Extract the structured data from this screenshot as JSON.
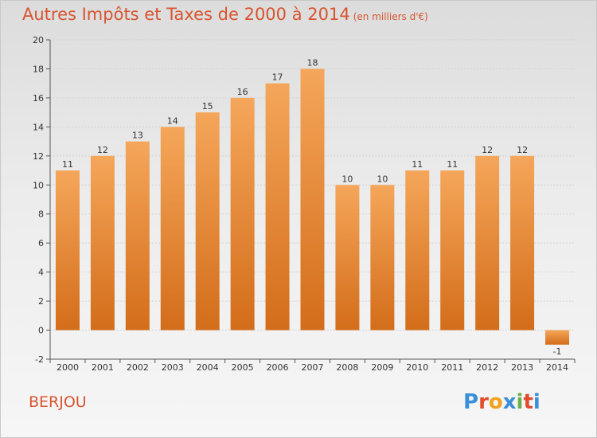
{
  "header": {
    "title": "Autres Impôts et Taxes de 2000 à 2014",
    "subtitle": "(en milliers d'€)"
  },
  "footer": {
    "commune": "BERJOU",
    "logo_letters": [
      "P",
      "r",
      "o",
      "x",
      "i",
      "t",
      "i"
    ]
  },
  "colors": {
    "bar_top": "#f5a65a",
    "bar_bottom": "#d36d1a",
    "title": "#d8542f"
  },
  "chart_data": {
    "type": "bar",
    "categories": [
      "2000",
      "2001",
      "2002",
      "2003",
      "2004",
      "2005",
      "2006",
      "2007",
      "2008",
      "2009",
      "2010",
      "2011",
      "2012",
      "2013",
      "2014"
    ],
    "values": [
      11,
      12,
      13,
      14,
      15,
      16,
      17,
      18,
      10,
      10,
      11,
      11,
      12,
      12,
      -1
    ],
    "data_labels": [
      "11",
      "12",
      "13",
      "14",
      "15",
      "16",
      "17",
      "18",
      "10",
      "10",
      "11",
      "11",
      "12",
      "12",
      "-1"
    ],
    "title": "Autres Impôts et Taxes de 2000 à 2014",
    "subtitle": "(en milliers d'€)",
    "ylim": [
      -2,
      20
    ],
    "yticks": [
      -2,
      0,
      2,
      4,
      6,
      8,
      10,
      12,
      14,
      16,
      18,
      20
    ],
    "grid": true
  }
}
